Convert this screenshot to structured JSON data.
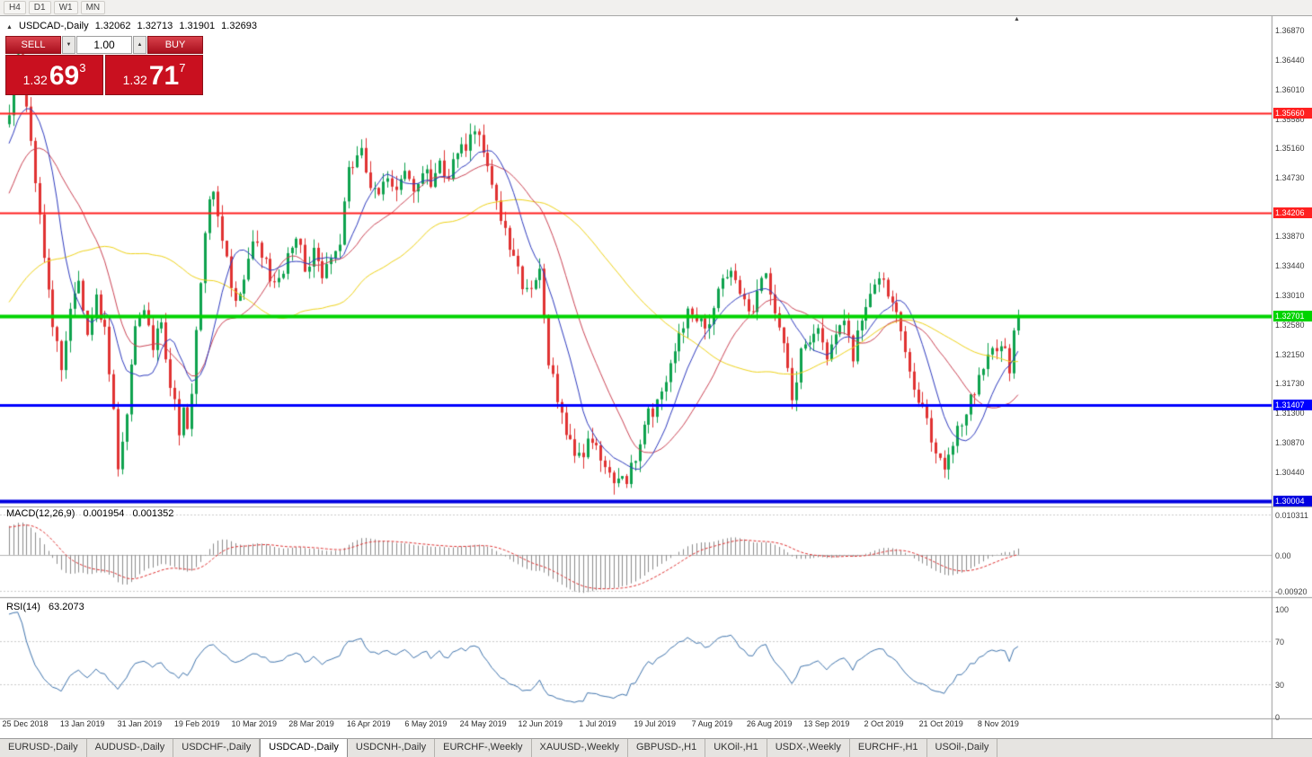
{
  "toolbar": {
    "timeframes": [
      "H4",
      "D1",
      "W1",
      "MN"
    ]
  },
  "chart": {
    "header": {
      "collapse_icon": "▲",
      "title": "USDCAD-,Daily",
      "open": "1.32062",
      "high": "1.32713",
      "low": "1.31901",
      "close": "1.32693"
    },
    "trade_panel": {
      "sell_label": "SELL",
      "buy_label": "BUY",
      "volume": "1.00",
      "spin_down_icon": "▼",
      "spin_up_icon": "▲",
      "sell_price_prefix": "1.32",
      "sell_price_big": "69",
      "sell_price_sup": "3",
      "buy_price_prefix": "1.32",
      "buy_price_big": "71",
      "buy_price_sup": "7"
    },
    "shift_marker_icon": "▲"
  },
  "chart_data": {
    "type": "candlestick",
    "symbol": "USDCAD",
    "timeframe": "Daily",
    "last_close": 1.32693,
    "price_axis_max": 1.3687,
    "price_axis_min": 1.30004,
    "ticks": [
      "1.36870",
      "1.36440",
      "1.36010",
      "1.35580",
      "1.35160",
      "1.34730",
      "1.33870",
      "1.33440",
      "1.33010",
      "1.32580",
      "1.32150",
      "1.31730",
      "1.31300",
      "1.30870",
      "1.30440"
    ],
    "levels": [
      {
        "price": 1.3566,
        "label": "1.35660",
        "color": "#ff2020",
        "width": 2
      },
      {
        "price": 1.34206,
        "label": "1.34206",
        "color": "#ff2020",
        "width": 2
      },
      {
        "price": 1.32701,
        "label": "1.32701",
        "color": "#00d400",
        "width": 4
      },
      {
        "price": 1.31407,
        "label": "1.31407",
        "color": "#0000ff",
        "width": 3
      },
      {
        "price": 1.30004,
        "label": "1.30004",
        "color": "#0000e0",
        "width": 4
      }
    ],
    "moving_averages": [
      {
        "type": "sma",
        "period": 55,
        "color": "#efd319"
      },
      {
        "type": "sma",
        "period": 21,
        "color": "#cc4455"
      },
      {
        "type": "sma",
        "period": 10,
        "color": "#2e3bbf"
      }
    ],
    "x_labels": [
      "25 Dec 2018",
      "13 Jan 2019",
      "31 Jan 2019",
      "19 Feb 2019",
      "10 Mar 2019",
      "28 Mar 2019",
      "16 Apr 2019",
      "6 May 2019",
      "24 May 2019",
      "12 Jun 2019",
      "1 Jul 2019",
      "19 Jul 2019",
      "7 Aug 2019",
      "26 Aug 2019",
      "13 Sep 2019",
      "2 Oct 2019",
      "21 Oct 2019",
      "8 Nov 2019"
    ],
    "close_waypoints": [
      [
        -60,
        1.312
      ],
      [
        -40,
        1.316
      ],
      [
        -25,
        1.326
      ],
      [
        -12,
        1.342
      ],
      [
        -4,
        1.354
      ],
      [
        0,
        1.356
      ],
      [
        1,
        1.3615
      ],
      [
        2,
        1.365
      ],
      [
        3,
        1.3635
      ],
      [
        4,
        1.357
      ],
      [
        6,
        1.346
      ],
      [
        8,
        1.336
      ],
      [
        10,
        1.3255
      ],
      [
        12,
        1.3195
      ],
      [
        14,
        1.329
      ],
      [
        16,
        1.332
      ],
      [
        18,
        1.325
      ],
      [
        20,
        1.329
      ],
      [
        22,
        1.3245
      ],
      [
        24,
        1.3135
      ],
      [
        25,
        1.3048
      ],
      [
        26,
        1.3075
      ],
      [
        27,
        1.313
      ],
      [
        28,
        1.32
      ],
      [
        29,
        1.3255
      ],
      [
        31,
        1.327
      ],
      [
        33,
        1.323
      ],
      [
        35,
        1.326
      ],
      [
        36,
        1.3205
      ],
      [
        38,
        1.314
      ],
      [
        39,
        1.3105
      ],
      [
        40,
        1.313
      ],
      [
        41,
        1.311
      ],
      [
        42,
        1.316
      ],
      [
        43,
        1.324
      ],
      [
        44,
        1.332
      ],
      [
        45,
        1.34
      ],
      [
        46,
        1.344
      ],
      [
        47,
        1.345
      ],
      [
        49,
        1.339
      ],
      [
        51,
        1.332
      ],
      [
        52,
        1.329
      ],
      [
        54,
        1.333
      ],
      [
        56,
        1.339
      ],
      [
        58,
        1.336
      ],
      [
        60,
        1.333
      ],
      [
        62,
        1.332
      ],
      [
        64,
        1.3355
      ],
      [
        66,
        1.339
      ],
      [
        68,
        1.3335
      ],
      [
        70,
        1.3365
      ],
      [
        72,
        1.3335
      ],
      [
        74,
        1.3365
      ],
      [
        76,
        1.3385
      ],
      [
        77,
        1.344
      ],
      [
        78,
        1.348
      ],
      [
        80,
        1.35
      ],
      [
        81,
        1.3512
      ],
      [
        83,
        1.3465
      ],
      [
        85,
        1.344
      ],
      [
        87,
        1.3475
      ],
      [
        89,
        1.3445
      ],
      [
        91,
        1.3475
      ],
      [
        93,
        1.3455
      ],
      [
        95,
        1.3485
      ],
      [
        97,
        1.3465
      ],
      [
        99,
        1.349
      ],
      [
        101,
        1.3475
      ],
      [
        103,
        1.35
      ],
      [
        105,
        1.352
      ],
      [
        107,
        1.3548
      ],
      [
        109,
        1.3505
      ],
      [
        111,
        1.3465
      ],
      [
        113,
        1.3415
      ],
      [
        115,
        1.3375
      ],
      [
        117,
        1.334
      ],
      [
        119,
        1.33
      ],
      [
        121,
        1.332
      ],
      [
        122,
        1.3335
      ],
      [
        123,
        1.326
      ],
      [
        124,
        1.3205
      ],
      [
        126,
        1.3155
      ],
      [
        128,
        1.3095
      ],
      [
        130,
        1.3075
      ],
      [
        132,
        1.3065
      ],
      [
        134,
        1.3095
      ],
      [
        136,
        1.3065
      ],
      [
        138,
        1.304
      ],
      [
        140,
        1.3028
      ],
      [
        142,
        1.3035
      ],
      [
        144,
        1.3065
      ],
      [
        146,
        1.3115
      ],
      [
        148,
        1.3135
      ],
      [
        150,
        1.316
      ],
      [
        152,
        1.3195
      ],
      [
        154,
        1.3235
      ],
      [
        156,
        1.329
      ],
      [
        158,
        1.3265
      ],
      [
        160,
        1.3245
      ],
      [
        162,
        1.329
      ],
      [
        164,
        1.3315
      ],
      [
        166,
        1.3335
      ],
      [
        168,
        1.3305
      ],
      [
        170,
        1.3265
      ],
      [
        172,
        1.3295
      ],
      [
        174,
        1.3335
      ],
      [
        175,
        1.33
      ],
      [
        176,
        1.3285
      ],
      [
        178,
        1.3235
      ],
      [
        180,
        1.315
      ],
      [
        182,
        1.3215
      ],
      [
        184,
        1.3235
      ],
      [
        186,
        1.3255
      ],
      [
        188,
        1.3215
      ],
      [
        190,
        1.3235
      ],
      [
        192,
        1.3255
      ],
      [
        194,
        1.3215
      ],
      [
        196,
        1.3265
      ],
      [
        198,
        1.3295
      ],
      [
        200,
        1.332
      ],
      [
        202,
        1.331
      ],
      [
        204,
        1.3265
      ],
      [
        206,
        1.3215
      ],
      [
        208,
        1.3165
      ],
      [
        210,
        1.3135
      ],
      [
        212,
        1.3095
      ],
      [
        214,
        1.3065
      ],
      [
        215,
        1.3048
      ],
      [
        217,
        1.3085
      ],
      [
        219,
        1.3115
      ],
      [
        221,
        1.3145
      ],
      [
        223,
        1.3175
      ],
      [
        225,
        1.3205
      ],
      [
        227,
        1.3225
      ],
      [
        229,
        1.3235
      ],
      [
        230,
        1.3185
      ],
      [
        231,
        1.3245
      ],
      [
        232,
        1.3269
      ]
    ],
    "macd": {
      "label": "MACD(12,26,9)",
      "value_main": "0.001954",
      "value_signal": "0.001352",
      "fast": 12,
      "slow": 26,
      "signal": 9,
      "axis": [
        "0.010311",
        "0.00",
        "-0.00920"
      ],
      "histogram_color": "#8c8c8c",
      "signal_color": "#e03232"
    },
    "rsi": {
      "label": "RSI(14)",
      "value": "63.2073",
      "period": 14,
      "axis": [
        "100",
        "70",
        "30",
        "0"
      ],
      "levels": [
        70,
        30
      ],
      "line_color": "#3f74ad"
    }
  },
  "colors": {
    "bull": "#0ea24e",
    "bear": "#e03232",
    "background": "#ffffff",
    "divider": "#9a9a9a"
  },
  "tabs": {
    "active": "USDCAD-,Daily",
    "items": [
      "EURUSD-,Daily",
      "AUDUSD-,Daily",
      "USDCHF-,Daily",
      "USDCAD-,Daily",
      "USDCNH-,Daily",
      "EURCHF-,Weekly",
      "XAUUSD-,Weekly",
      "GBPUSD-,H1",
      "UKOil-,H1",
      "USDX-,Weekly",
      "EURCHF-,H1",
      "USOil-,Daily"
    ]
  }
}
